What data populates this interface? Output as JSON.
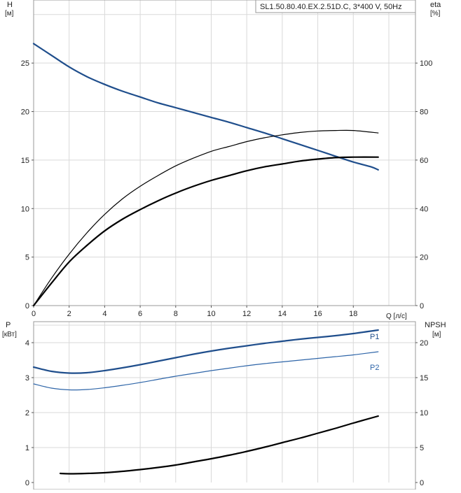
{
  "chart_data": [
    {
      "type": "line",
      "title": "SL1.50.80.40.EX.2.51D.C, 3*400 V, 50Hz",
      "y_left_label_line1": "H",
      "y_left_label_line2": "[м]",
      "y_right_label_line1": "eta",
      "y_right_label_line2": "[%]",
      "xlabel": "Q [л/с]",
      "xlim": [
        0,
        21.5
      ],
      "ylim_left": [
        0,
        31.5
      ],
      "ylim_right": [
        0,
        126
      ],
      "x_ticks": [
        0,
        2,
        4,
        6,
        8,
        10,
        12,
        14,
        16,
        18
      ],
      "y_left_ticks": [
        0,
        5,
        10,
        15,
        20,
        25
      ],
      "y_right_ticks": [
        0,
        20,
        40,
        60,
        80,
        100
      ],
      "grid": true,
      "series": [
        {
          "axis": "left",
          "color": "#1f4e8c",
          "width": 2.2,
          "points": [
            [
              0,
              27
            ],
            [
              1,
              25.8
            ],
            [
              2,
              24.6
            ],
            [
              3,
              23.6
            ],
            [
              4,
              22.8
            ],
            [
              5,
              22.1
            ],
            [
              6,
              21.5
            ],
            [
              7,
              20.9
            ],
            [
              8,
              20.4
            ],
            [
              9,
              19.9
            ],
            [
              10,
              19.4
            ],
            [
              11,
              18.9
            ],
            [
              12,
              18.35
            ],
            [
              13,
              17.8
            ],
            [
              14,
              17.2
            ],
            [
              15,
              16.6
            ],
            [
              16,
              16.0
            ],
            [
              17,
              15.4
            ],
            [
              18,
              14.8
            ],
            [
              19,
              14.3
            ],
            [
              19.4,
              14.0
            ]
          ]
        },
        {
          "axis": "left",
          "color": "#000000",
          "width": 1.2,
          "points": [
            [
              0,
              0
            ],
            [
              1,
              2.8
            ],
            [
              2,
              5.3
            ],
            [
              3,
              7.5
            ],
            [
              4,
              9.4
            ],
            [
              5,
              11.0
            ],
            [
              6,
              12.3
            ],
            [
              7,
              13.4
            ],
            [
              8,
              14.4
            ],
            [
              9,
              15.2
            ],
            [
              10,
              15.9
            ],
            [
              11,
              16.4
            ],
            [
              12,
              16.9
            ],
            [
              13,
              17.3
            ],
            [
              14,
              17.6
            ],
            [
              15,
              17.85
            ],
            [
              16,
              18.0
            ],
            [
              17,
              18.05
            ],
            [
              18,
              18.05
            ],
            [
              19.4,
              17.8
            ]
          ]
        },
        {
          "axis": "left",
          "color": "#000000",
          "width": 2.2,
          "points": [
            [
              0,
              0
            ],
            [
              1,
              2.3
            ],
            [
              2,
              4.5
            ],
            [
              3,
              6.2
            ],
            [
              4,
              7.7
            ],
            [
              5,
              8.9
            ],
            [
              6,
              9.9
            ],
            [
              7,
              10.8
            ],
            [
              8,
              11.6
            ],
            [
              9,
              12.3
            ],
            [
              10,
              12.9
            ],
            [
              11,
              13.4
            ],
            [
              12,
              13.9
            ],
            [
              13,
              14.3
            ],
            [
              14,
              14.6
            ],
            [
              15,
              14.9
            ],
            [
              16,
              15.1
            ],
            [
              17,
              15.25
            ],
            [
              18,
              15.3
            ],
            [
              19.4,
              15.3
            ]
          ]
        }
      ]
    },
    {
      "type": "line",
      "y_left_label_line1": "P",
      "y_left_label_line2": "[кВт]",
      "y_right_label_line1": "NPSH",
      "y_right_label_line2": "[м]",
      "xlim": [
        0,
        21.5
      ],
      "ylim_left": [
        0,
        4.6
      ],
      "ylim_right": [
        0,
        23
      ],
      "x_ticks": [
        0,
        2,
        4,
        6,
        8,
        10,
        12,
        14,
        16,
        18
      ],
      "y_left_ticks": [
        0,
        1,
        2,
        3,
        4
      ],
      "y_right_ticks": [
        0,
        5,
        10,
        15,
        20
      ],
      "grid": true,
      "series": [
        {
          "name": "P1",
          "axis": "left",
          "color": "#1f4e8c",
          "width": 2.2,
          "points": [
            [
              0,
              3.3
            ],
            [
              1,
              3.18
            ],
            [
              2,
              3.13
            ],
            [
              3,
              3.14
            ],
            [
              4,
              3.2
            ],
            [
              5,
              3.28
            ],
            [
              6,
              3.37
            ],
            [
              7,
              3.47
            ],
            [
              8,
              3.57
            ],
            [
              9,
              3.67
            ],
            [
              10,
              3.76
            ],
            [
              11,
              3.84
            ],
            [
              12,
              3.91
            ],
            [
              13,
              3.98
            ],
            [
              14,
              4.04
            ],
            [
              15,
              4.1
            ],
            [
              16,
              4.15
            ],
            [
              17,
              4.2
            ],
            [
              18,
              4.26
            ],
            [
              19.4,
              4.36
            ]
          ]
        },
        {
          "name": "P2",
          "axis": "left",
          "color": "#2e65a8",
          "width": 1.2,
          "points": [
            [
              0,
              2.82
            ],
            [
              1,
              2.7
            ],
            [
              2,
              2.65
            ],
            [
              3,
              2.66
            ],
            [
              4,
              2.71
            ],
            [
              5,
              2.78
            ],
            [
              6,
              2.86
            ],
            [
              7,
              2.95
            ],
            [
              8,
              3.04
            ],
            [
              9,
              3.12
            ],
            [
              10,
              3.2
            ],
            [
              11,
              3.27
            ],
            [
              12,
              3.34
            ],
            [
              13,
              3.4
            ],
            [
              14,
              3.45
            ],
            [
              15,
              3.5
            ],
            [
              16,
              3.55
            ],
            [
              17,
              3.6
            ],
            [
              18,
              3.65
            ],
            [
              19.4,
              3.74
            ]
          ]
        },
        {
          "axis": "right",
          "color": "#000000",
          "width": 2.2,
          "points": [
            [
              1.5,
              1.3
            ],
            [
              2,
              1.25
            ],
            [
              3,
              1.3
            ],
            [
              4,
              1.4
            ],
            [
              5,
              1.6
            ],
            [
              6,
              1.85
            ],
            [
              7,
              2.15
            ],
            [
              8,
              2.5
            ],
            [
              9,
              2.95
            ],
            [
              10,
              3.4
            ],
            [
              11,
              3.9
            ],
            [
              12,
              4.45
            ],
            [
              13,
              5.05
            ],
            [
              14,
              5.7
            ],
            [
              15,
              6.35
            ],
            [
              16,
              7.05
            ],
            [
              17,
              7.75
            ],
            [
              18,
              8.5
            ],
            [
              19.4,
              9.5
            ]
          ]
        }
      ]
    }
  ]
}
